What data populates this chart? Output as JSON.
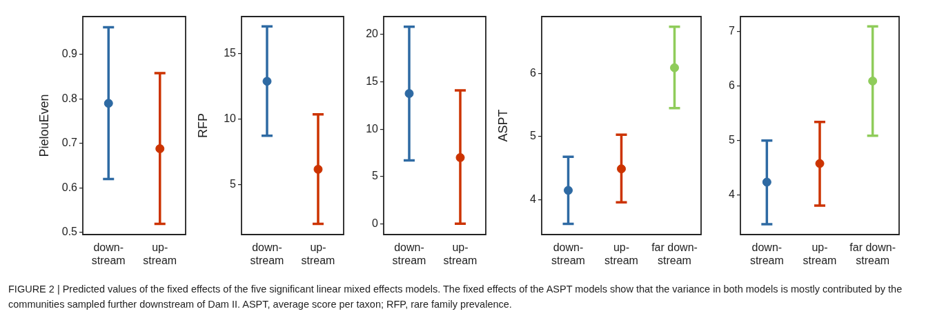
{
  "chart_data": [
    {
      "type": "scatter",
      "ylabel": "PielouEven",
      "categories": [
        "down-stream",
        "up-stream"
      ],
      "values": [
        0.79,
        0.688
      ],
      "colors": [
        "#2e6aa3",
        "#cc3300"
      ],
      "errors": [
        [
          0.62,
          0.961
        ],
        [
          0.519,
          0.858
        ]
      ],
      "ylim": [
        0.495,
        0.985
      ],
      "yticks": [
        0.5,
        0.6,
        0.7,
        0.8,
        0.9
      ],
      "grid": false,
      "legend": false,
      "marker": "circle"
    },
    {
      "type": "scatter",
      "ylabel": "RFP",
      "categories": [
        "down-stream",
        "up-stream"
      ],
      "values": [
        12.87,
        6.17
      ],
      "colors": [
        "#2e6aa3",
        "#cc3300"
      ],
      "errors": [
        [
          8.72,
          17.05
        ],
        [
          2.02,
          10.35
        ]
      ],
      "ylim": [
        1.2,
        17.8
      ],
      "yticks": [
        5,
        10,
        15
      ],
      "grid": false,
      "legend": false,
      "marker": "circle"
    },
    {
      "type": "scatter",
      "categories": [
        "down-stream",
        "up-stream"
      ],
      "values": [
        13.76,
        6.99
      ],
      "colors": [
        "#2e6aa3",
        "#cc3300"
      ],
      "errors": [
        [
          6.69,
          20.83
        ],
        [
          0,
          14.1
        ]
      ],
      "ylim": [
        -1.15,
        21.9
      ],
      "yticks": [
        0,
        5,
        10,
        15,
        20
      ],
      "grid": false,
      "legend": false,
      "marker": "circle"
    },
    {
      "type": "scatter",
      "ylabel": "ASPT",
      "categories": [
        "down-stream",
        "up-stream",
        "far down-stream"
      ],
      "values": [
        4.15,
        4.49,
        6.09
      ],
      "colors": [
        "#2e6aa3",
        "#cc3300",
        "#8fcc5a"
      ],
      "errors": [
        [
          3.62,
          4.68
        ],
        [
          3.96,
          5.03
        ],
        [
          5.45,
          6.74
        ]
      ],
      "ylim": [
        3.45,
        6.9
      ],
      "yticks": [
        4,
        5,
        6
      ],
      "grid": false,
      "legend": false,
      "marker": "circle"
    },
    {
      "type": "scatter",
      "categories": [
        "down-stream",
        "up-stream",
        "far down-stream"
      ],
      "values": [
        4.24,
        4.58,
        6.09
      ],
      "colors": [
        "#2e6aa3",
        "#cc3300",
        "#8fcc5a"
      ],
      "errors": [
        [
          3.47,
          5.0
        ],
        [
          3.81,
          5.34
        ],
        [
          5.09,
          7.09
        ]
      ],
      "ylim": [
        3.28,
        7.27
      ],
      "yticks": [
        4,
        5,
        6,
        7
      ],
      "grid": false,
      "legend": false,
      "marker": "circle",
      "annotations": [
        "FIGURE 2 | Predicted values of the fixed effects of the five significant linear mixed effects models. The fixed effects of the ASPT models show that the variance in both models is mostly contributed by the communities sampled further downstream of Dam II. ASPT, average score per taxon; RFP, rare family prevalence."
      ]
    }
  ]
}
